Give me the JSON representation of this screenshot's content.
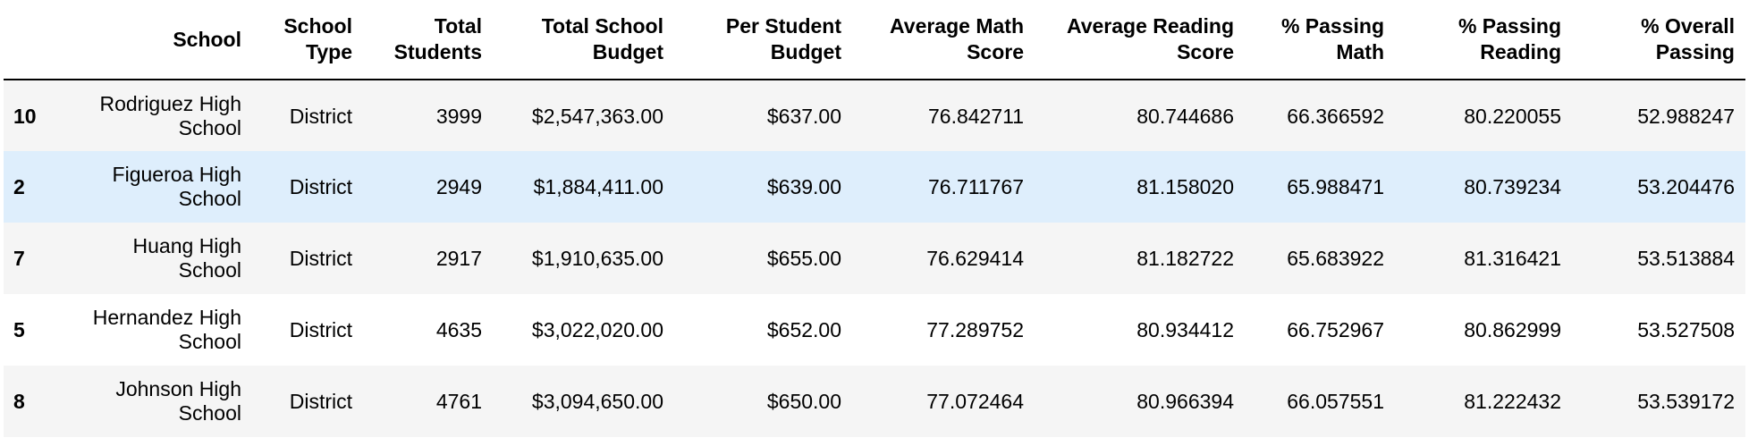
{
  "table": {
    "columns": [
      "",
      "School",
      "School Type",
      "Total Students",
      "Total School Budget",
      "Per Student Budget",
      "Average Math Score",
      "Average Reading Score",
      "% Passing Math",
      "% Passing Reading",
      "% Overall Passing"
    ],
    "column_lines": [
      [
        ""
      ],
      [
        "School"
      ],
      [
        "School",
        "Type"
      ],
      [
        "Total",
        "Students"
      ],
      [
        "Total School",
        "Budget"
      ],
      [
        "Per Student",
        "Budget"
      ],
      [
        "Average Math",
        "Score"
      ],
      [
        "Average Reading",
        "Score"
      ],
      [
        "% Passing",
        "Math"
      ],
      [
        "% Passing",
        "Reading"
      ],
      [
        "% Overall",
        "Passing"
      ]
    ],
    "rows": [
      {
        "index": "10",
        "school": [
          "Rodriguez High",
          "School"
        ],
        "type": "District",
        "students": "3999",
        "budget": "$2,547,363.00",
        "per_student": "$637.00",
        "math": "76.842711",
        "reading": "80.744686",
        "pass_math": "66.366592",
        "pass_reading": "80.220055",
        "overall": "52.988247"
      },
      {
        "index": "2",
        "school": [
          "Figueroa High",
          "School"
        ],
        "type": "District",
        "students": "2949",
        "budget": "$1,884,411.00",
        "per_student": "$639.00",
        "math": "76.711767",
        "reading": "81.158020",
        "pass_math": "65.988471",
        "pass_reading": "80.739234",
        "overall": "53.204476"
      },
      {
        "index": "7",
        "school": [
          "Huang High",
          "School"
        ],
        "type": "District",
        "students": "2917",
        "budget": "$1,910,635.00",
        "per_student": "$655.00",
        "math": "76.629414",
        "reading": "81.182722",
        "pass_math": "65.683922",
        "pass_reading": "81.316421",
        "overall": "53.513884"
      },
      {
        "index": "5",
        "school": [
          "Hernandez High",
          "School"
        ],
        "type": "District",
        "students": "4635",
        "budget": "$3,022,020.00",
        "per_student": "$652.00",
        "math": "77.289752",
        "reading": "80.934412",
        "pass_math": "66.752967",
        "pass_reading": "80.862999",
        "overall": "53.527508"
      },
      {
        "index": "8",
        "school": [
          "Johnson High",
          "School"
        ],
        "type": "District",
        "students": "4761",
        "budget": "$3,094,650.00",
        "per_student": "$650.00",
        "math": "77.072464",
        "reading": "80.966394",
        "pass_math": "66.057551",
        "pass_reading": "81.222432",
        "overall": "53.539172"
      }
    ],
    "highlighted_row": 1,
    "colors": {
      "odd_row": "#f5f5f5",
      "even_row": "#ffffff",
      "hover_row": "#deeefc"
    }
  }
}
